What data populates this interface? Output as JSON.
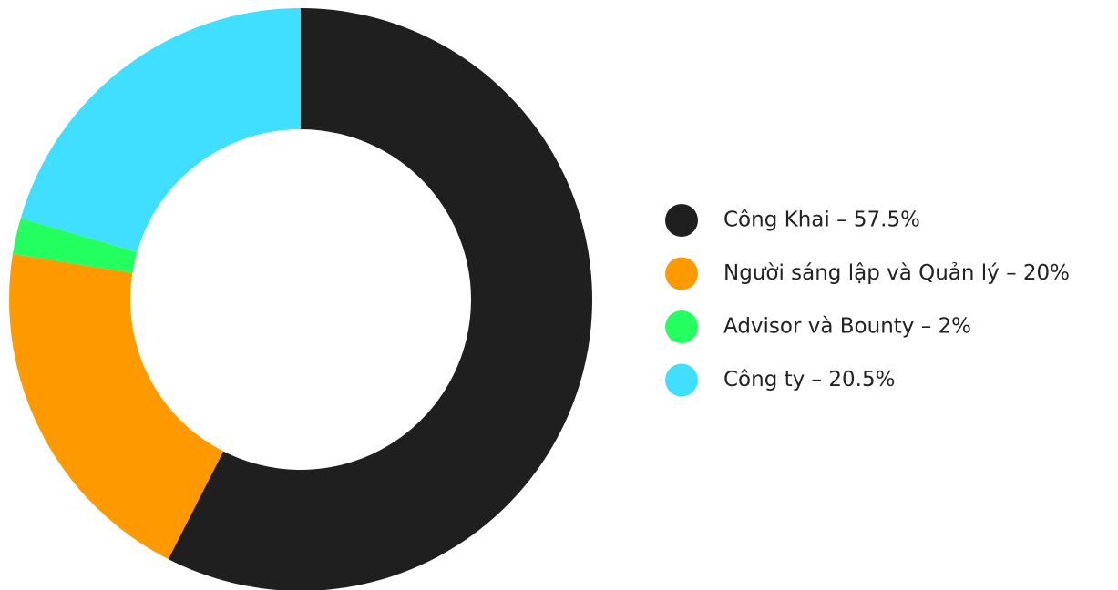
{
  "chart_data": {
    "type": "donut",
    "categories": [
      "Công Khai – 57.5%",
      "Người sáng lập và Quản lý – 20%",
      "Advisor và Bounty – 2%",
      "Công ty – 20.5%"
    ],
    "values": [
      57.5,
      20,
      2,
      20.5
    ],
    "colors": [
      "#1f1f1f",
      "#ff9900",
      "#22ff5f",
      "#40dfff"
    ],
    "legend": "right"
  }
}
